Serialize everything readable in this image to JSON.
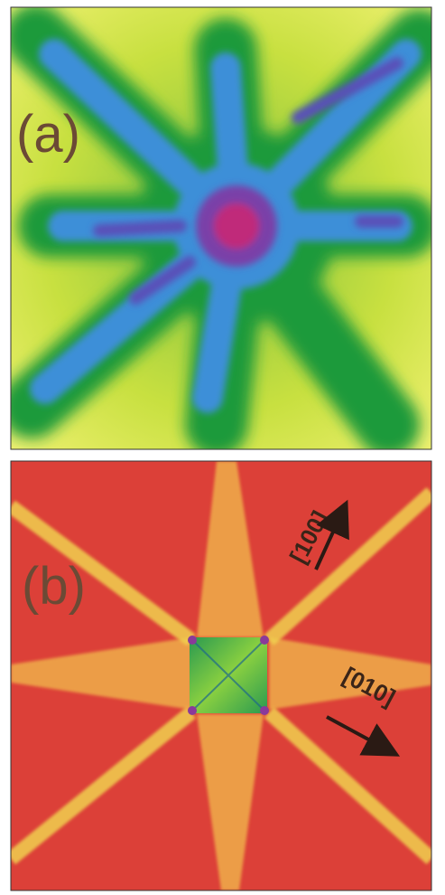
{
  "panels": [
    {
      "label": "(a)"
    },
    {
      "label": "(b)",
      "annotations": [
        "[100]",
        "[010]"
      ]
    }
  ]
}
